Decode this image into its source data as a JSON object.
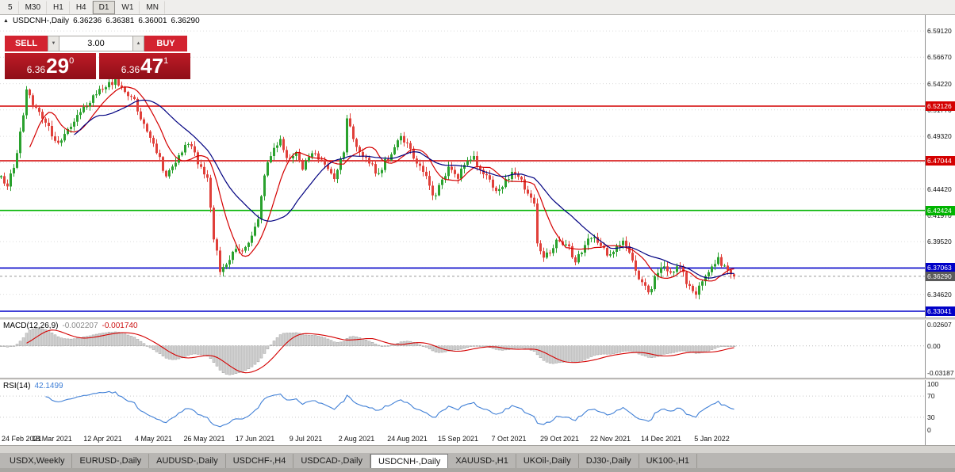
{
  "colors": {
    "up": "#2aa12e",
    "down": "#e0403a",
    "ma_fast": "#d40000",
    "ma_slow": "#000080",
    "resistance": "#d40000",
    "support_green": "#00b400",
    "support_blue": "#0000c8",
    "price_badge_bg": "#5a5a5a",
    "macd_signal": "#d40000",
    "rsi_line": "#3f7fd6",
    "hist_fill": "#d2d2d2",
    "hist_stroke": "#8e8e8e"
  },
  "toolbar": {
    "timeframes": [
      "5",
      "M30",
      "H1",
      "H4",
      "D1",
      "W1",
      "MN"
    ],
    "active": "D1"
  },
  "symbol_header": {
    "arrow": "▲",
    "title": "USDCNH-,Daily",
    "o": "6.36236",
    "h": "6.36381",
    "l": "6.36001",
    "c": "6.36290"
  },
  "trade_panel": {
    "sell": "SELL",
    "buy": "BUY",
    "volume": "3.00",
    "spin_down": "▼",
    "spin_up": "▲",
    "sell_small": "6.36",
    "sell_big": "29",
    "sell_sup": "0",
    "buy_small": "6.36",
    "buy_big": "47",
    "buy_sup": "1"
  },
  "chart_data": {
    "type": "candlestick",
    "symbol": "USDCNH-,Daily",
    "price_range": {
      "top": 6.606,
      "bottom": 6.3245
    },
    "candle_count": 232,
    "last_close": 6.3629,
    "close_path": [
      [
        0,
        6.455
      ],
      [
        2,
        6.448
      ],
      [
        5,
        6.475
      ],
      [
        8,
        6.535
      ],
      [
        11,
        6.52
      ],
      [
        15,
        6.5
      ],
      [
        18,
        6.486
      ],
      [
        21,
        6.5
      ],
      [
        25,
        6.515
      ],
      [
        29,
        6.53
      ],
      [
        33,
        6.54
      ],
      [
        36,
        6.545
      ],
      [
        39,
        6.535
      ],
      [
        42,
        6.525
      ],
      [
        45,
        6.505
      ],
      [
        49,
        6.48
      ],
      [
        52,
        6.456
      ],
      [
        56,
        6.475
      ],
      [
        59,
        6.487
      ],
      [
        62,
        6.47
      ],
      [
        65,
        6.455
      ],
      [
        67,
        6.4
      ],
      [
        69,
        6.368
      ],
      [
        71,
        6.375
      ],
      [
        74,
        6.39
      ],
      [
        76,
        6.385
      ],
      [
        79,
        6.4
      ],
      [
        81,
        6.418
      ],
      [
        83,
        6.458
      ],
      [
        85,
        6.475
      ],
      [
        88,
        6.49
      ],
      [
        90,
        6.47
      ],
      [
        93,
        6.48
      ],
      [
        95,
        6.465
      ],
      [
        98,
        6.478
      ],
      [
        100,
        6.472
      ],
      [
        103,
        6.462
      ],
      [
        105,
        6.455
      ],
      [
        108,
        6.478
      ],
      [
        109,
        6.512
      ],
      [
        111,
        6.49
      ],
      [
        114,
        6.475
      ],
      [
        116,
        6.468
      ],
      [
        119,
        6.458
      ],
      [
        121,
        6.47
      ],
      [
        124,
        6.48
      ],
      [
        126,
        6.494
      ],
      [
        129,
        6.48
      ],
      [
        131,
        6.47
      ],
      [
        134,
        6.455
      ],
      [
        136,
        6.436
      ],
      [
        139,
        6.45
      ],
      [
        141,
        6.462
      ],
      [
        144,
        6.455
      ],
      [
        146,
        6.468
      ],
      [
        149,
        6.474
      ],
      [
        151,
        6.462
      ],
      [
        154,
        6.45
      ],
      [
        156,
        6.44
      ],
      [
        159,
        6.452
      ],
      [
        161,
        6.458
      ],
      [
        164,
        6.452
      ],
      [
        166,
        6.44
      ],
      [
        168,
        6.428
      ],
      [
        169,
        6.392
      ],
      [
        171,
        6.38
      ],
      [
        174,
        6.39
      ],
      [
        176,
        6.398
      ],
      [
        179,
        6.388
      ],
      [
        181,
        6.378
      ],
      [
        184,
        6.392
      ],
      [
        186,
        6.4
      ],
      [
        189,
        6.394
      ],
      [
        191,
        6.384
      ],
      [
        194,
        6.39
      ],
      [
        196,
        6.398
      ],
      [
        199,
        6.378
      ],
      [
        201,
        6.362
      ],
      [
        204,
        6.346
      ],
      [
        206,
        6.362
      ],
      [
        209,
        6.372
      ],
      [
        211,
        6.368
      ],
      [
        214,
        6.372
      ],
      [
        216,
        6.358
      ],
      [
        219,
        6.346
      ],
      [
        221,
        6.36
      ],
      [
        224,
        6.372
      ],
      [
        226,
        6.378
      ],
      [
        229,
        6.37
      ],
      [
        231,
        6.3629
      ]
    ],
    "axis_ticks": [
      "6.59120",
      "6.56670",
      "6.54220",
      "6.51770",
      "6.49320",
      "6.46870",
      "6.44420",
      "6.41970",
      "6.39520",
      "6.37070",
      "6.34620"
    ],
    "hlines": [
      {
        "price": 6.52126,
        "label": "6.52126",
        "type": "resistance"
      },
      {
        "price": 6.47044,
        "label": "6.47044",
        "type": "resistance"
      },
      {
        "price": 6.42424,
        "label": "6.42424",
        "type": "support_green"
      },
      {
        "price": 6.37063,
        "label": "6.37063",
        "type": "support_blue"
      },
      {
        "price": 6.33041,
        "label": "6.33041",
        "type": "support_blue"
      }
    ],
    "current_price": {
      "price": 6.3629,
      "label": "6.36290"
    },
    "time_labels": [
      "24 Feb 2021",
      "18 Mar 2021",
      "12 Apr 2021",
      "4 May 2021",
      "26 May 2021",
      "17 Jun 2021",
      "9 Jul 2021",
      "2 Aug 2021",
      "24 Aug 2021",
      "15 Sep 2021",
      "7 Oct 2021",
      "29 Oct 2021",
      "22 Nov 2021",
      "14 Dec 2021",
      "5 Jan 2022"
    ],
    "ma": {
      "fast_period": 10,
      "slow_period": 24
    },
    "macd": {
      "label": "MACD(12,26,9)",
      "value1": "-0.002207",
      "value2": "-0.001740",
      "axis": [
        "0.02607",
        "0.00",
        "-0.03187"
      ],
      "range": [
        -0.03187,
        0.02607
      ],
      "params": [
        12,
        26,
        9
      ]
    },
    "rsi": {
      "label": "RSI(14)",
      "value": "42.1499",
      "axis": [
        "100",
        "70",
        "30",
        "0"
      ],
      "levels": [
        70,
        30
      ],
      "period": 14
    }
  },
  "tabs": {
    "items": [
      "USDX,Weekly",
      "EURUSD-,Daily",
      "AUDUSD-,Daily",
      "USDCHF-,H4",
      "USDCAD-,Daily",
      "USDCNH-,Daily",
      "XAUUSD-,H1",
      "UKOil-,Daily",
      "DJ30-,Daily",
      "UK100-,H1"
    ],
    "active": "USDCNH-,Daily"
  }
}
